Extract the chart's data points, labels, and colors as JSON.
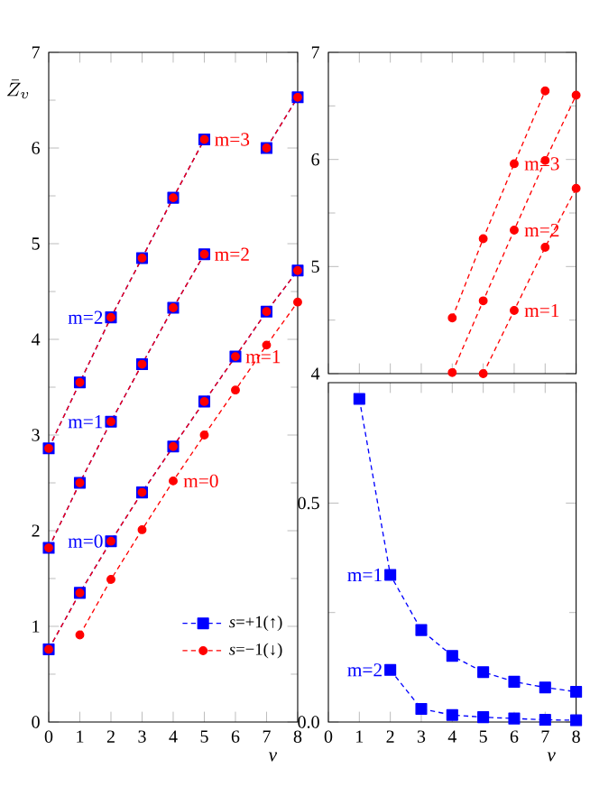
{
  "chart_data": [
    {
      "type": "line",
      "xlabel": "v",
      "ylabel": "\\bar{Z}_v",
      "xlim": [
        0,
        8
      ],
      "ylim": [
        0,
        7
      ],
      "xticks": [
        0,
        1,
        2,
        3,
        4,
        5,
        6,
        7,
        8
      ],
      "yticks": [
        0,
        1,
        2,
        3,
        4,
        5,
        6,
        7
      ],
      "line_style": "dashed",
      "legend": "bottom right",
      "x": [
        0,
        1,
        2,
        3,
        4,
        5,
        6,
        7,
        8
      ],
      "series": [
        {
          "name": "*s*=+1(↑)",
          "color": "#0000ff",
          "marker": "square",
          "values": [
            0.76,
            1.35,
            1.89,
            2.4,
            2.88,
            3.35,
            3.82,
            4.29,
            4.72
          ]
        },
        {
          "color": "#0000ff",
          "marker": "square",
          "values": [
            1.82,
            2.5,
            3.14,
            3.74,
            4.33,
            4.89,
            null,
            6.0,
            6.53
          ]
        },
        {
          "color": "#0000ff",
          "marker": "square",
          "values": [
            2.86,
            3.55,
            4.23,
            4.85,
            5.48,
            6.09,
            null,
            null,
            null
          ]
        },
        {
          "name": "*s*=−1(↓)",
          "color": "#ff0000",
          "marker": "circle",
          "values": [
            null,
            0.91,
            1.49,
            2.01,
            2.52,
            3.0,
            3.47,
            3.94,
            4.39
          ]
        },
        {
          "color": "#ff0000",
          "marker": "circle",
          "values": [
            0.76,
            1.35,
            1.89,
            2.4,
            2.88,
            3.35,
            3.82,
            4.29,
            4.72
          ]
        },
        {
          "color": "#ff0000",
          "marker": "circle",
          "values": [
            1.82,
            2.5,
            3.14,
            3.74,
            4.33,
            4.89,
            null,
            6.0,
            6.53
          ]
        },
        {
          "color": "#ff0000",
          "marker": "circle",
          "values": [
            2.86,
            3.55,
            4.23,
            4.85,
            5.48,
            6.09,
            null,
            null,
            null
          ]
        }
      ],
      "annotations": [
        {
          "text": "m=0",
          "x": 2,
          "y": 1.89
        },
        {
          "text": "m=1",
          "x": 2,
          "y": 3.14
        },
        {
          "text": "m=2",
          "x": 2,
          "y": 4.23
        },
        {
          "text": "m=0",
          "x": 4,
          "y": 2.52
        },
        {
          "text": "m=1",
          "x": 6,
          "y": 3.82
        },
        {
          "text": "m=2",
          "x": 5,
          "y": 4.89
        },
        {
          "text": "m=3",
          "x": 5,
          "y": 6.09
        }
      ]
    },
    {
      "type": "line",
      "xlim": [
        0,
        8
      ],
      "ylim": [
        4,
        7
      ],
      "xticks": [
        0,
        1,
        2,
        3,
        4,
        5,
        6,
        7,
        8
      ],
      "yticks": [
        4,
        5,
        6,
        7
      ],
      "tick_labels": "y",
      "line_style": "dashed",
      "x": [
        4,
        5,
        6,
        7,
        8
      ],
      "series": [
        {
          "color": "#ff0000",
          "marker": "circle",
          "values": [
            4.52,
            5.26,
            5.96,
            6.64,
            null
          ]
        },
        {
          "color": "#ff0000",
          "marker": "circle",
          "values": [
            4.01,
            4.68,
            5.34,
            5.99,
            6.6
          ]
        },
        {
          "color": "#ff0000",
          "marker": "circle",
          "values": [
            null,
            4.0,
            4.59,
            5.18,
            5.73
          ]
        }
      ],
      "annotations": [
        {
          "text": "m=3",
          "x": 6,
          "y": 5.96
        },
        {
          "text": "m=2",
          "x": 6,
          "y": 5.34
        },
        {
          "text": "m=1",
          "x": 6,
          "y": 4.59
        }
      ]
    },
    {
      "type": "line",
      "xlabel": "v",
      "xlim": [
        0,
        8
      ],
      "ylim": [
        0,
        0.775
      ],
      "xticks": [
        0,
        1,
        2,
        3,
        4,
        5,
        6,
        7,
        8
      ],
      "yticks": [
        {
          "value": 0,
          "label": "0.0"
        },
        {
          "value": 0.5,
          "label": "0.5"
        }
      ],
      "line_style": "dashed",
      "x": [
        1,
        2,
        3,
        4,
        5,
        6,
        7,
        8
      ],
      "series": [
        {
          "color": "#0000ff",
          "marker": "square",
          "values": [
            0.738,
            0.336,
            0.21,
            0.151,
            0.114,
            0.092,
            0.079,
            0.069
          ]
        },
        {
          "color": "#0000ff",
          "marker": "square",
          "values": [
            null,
            0.119,
            0.03,
            0.016,
            0.011,
            0.008,
            0.005,
            0.004
          ]
        }
      ],
      "annotations": [
        {
          "text": "m=1",
          "x": 2,
          "y": 0.336
        },
        {
          "text": "m=2",
          "x": 2,
          "y": 0.119
        }
      ]
    }
  ]
}
